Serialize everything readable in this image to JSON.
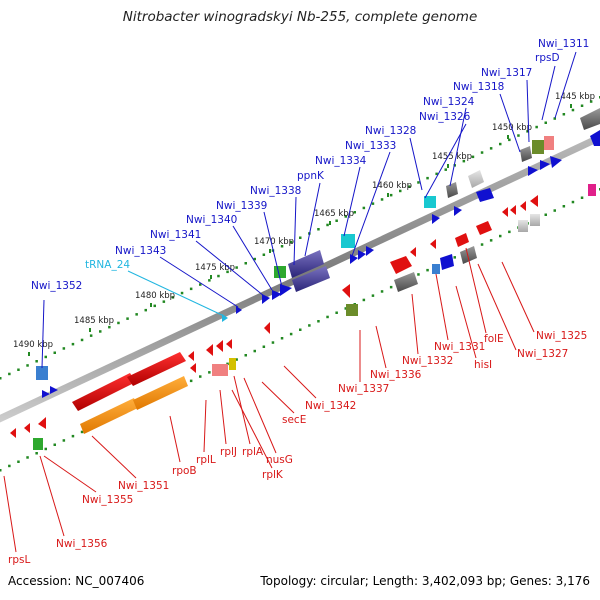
{
  "title": "Nitrobacter winogradskyi Nb-255, complete genome",
  "footer": {
    "accession": "Accession: NC_007406",
    "topology": "Topology: circular; Length: 3,402,093 bp; Genes: 3,176"
  },
  "ruler": [
    {
      "label": "1445 kbp",
      "pos": 1445
    },
    {
      "label": "1450 kbp",
      "pos": 1450
    },
    {
      "label": "1455 kbp",
      "pos": 1455
    },
    {
      "label": "1460 kbp",
      "pos": 1460
    },
    {
      "label": "1465 kbp",
      "pos": 1465
    },
    {
      "label": "1470 kbp",
      "pos": 1470
    },
    {
      "label": "1475 kbp",
      "pos": 1475
    },
    {
      "label": "1480 kbp",
      "pos": 1480
    },
    {
      "label": "1485 kbp",
      "pos": 1485
    },
    {
      "label": "1490 kbp",
      "pos": 1490
    }
  ],
  "forward_genes": [
    {
      "label": "Nwi_1311",
      "type": "CDS"
    },
    {
      "label": "rpsD",
      "type": "CDS"
    },
    {
      "label": "Nwi_1317",
      "type": "CDS"
    },
    {
      "label": "Nwi_1318",
      "type": "CDS"
    },
    {
      "label": "Nwi_1324",
      "type": "CDS"
    },
    {
      "label": "Nwi_1326",
      "type": "CDS"
    },
    {
      "label": "Nwi_1328",
      "type": "CDS"
    },
    {
      "label": "Nwi_1333",
      "type": "CDS"
    },
    {
      "label": "Nwi_1334",
      "type": "CDS"
    },
    {
      "label": "ppnK",
      "type": "CDS"
    },
    {
      "label": "Nwi_1338",
      "type": "CDS"
    },
    {
      "label": "Nwi_1339",
      "type": "CDS"
    },
    {
      "label": "Nwi_1340",
      "type": "CDS"
    },
    {
      "label": "Nwi_1341",
      "type": "CDS"
    },
    {
      "label": "Nwi_1343",
      "type": "CDS"
    },
    {
      "label": "tRNA_24",
      "type": "tRNA"
    },
    {
      "label": "Nwi_1352",
      "type": "CDS"
    }
  ],
  "reverse_genes": [
    {
      "label": "Nwi_1325"
    },
    {
      "label": "Nwi_1327"
    },
    {
      "label": "folE"
    },
    {
      "label": "hisI"
    },
    {
      "label": "Nwi_1331"
    },
    {
      "label": "Nwi_1332"
    },
    {
      "label": "Nwi_1336"
    },
    {
      "label": "Nwi_1337"
    },
    {
      "label": "Nwi_1342"
    },
    {
      "label": "secE"
    },
    {
      "label": "nusG"
    },
    {
      "label": "rplK"
    },
    {
      "label": "rplA"
    },
    {
      "label": "rplJ"
    },
    {
      "label": "rplL"
    },
    {
      "label": "rpoB"
    },
    {
      "label": "Nwi_1351"
    },
    {
      "label": "Nwi_1355"
    },
    {
      "label": "Nwi_1356"
    },
    {
      "label": "rpsL"
    }
  ],
  "colors": {
    "forward": "#1515c8",
    "reverse": "#d81818",
    "trna": "#22b6e0",
    "backbone": "#8a8a8a",
    "ruler_dot": "#228822"
  }
}
